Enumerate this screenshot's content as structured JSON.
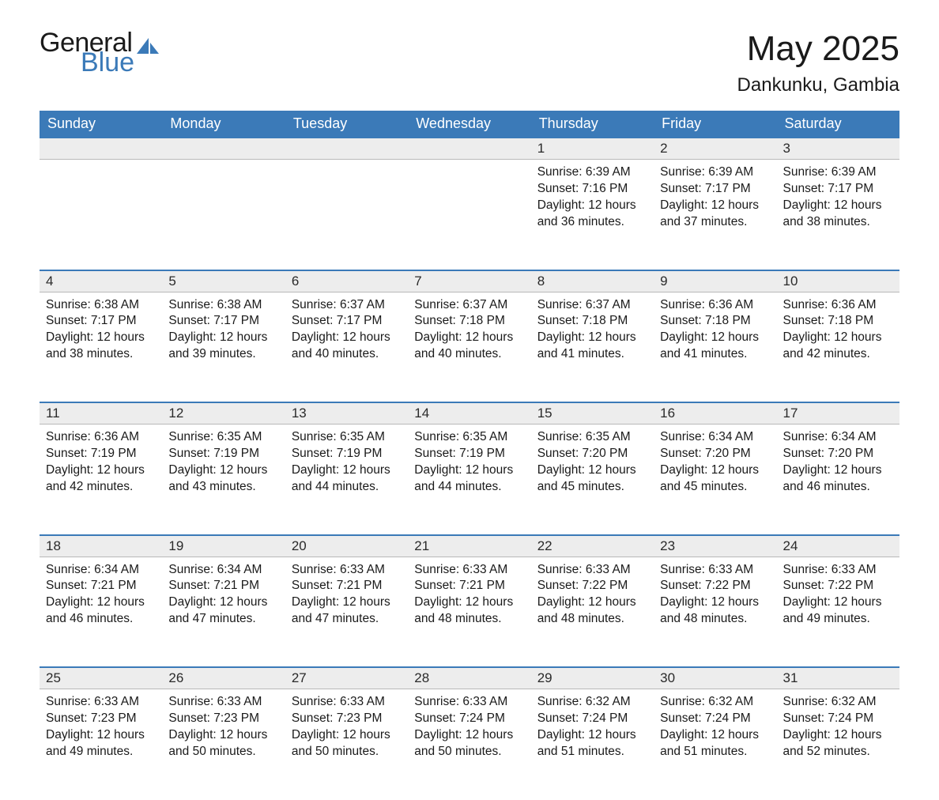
{
  "logo": {
    "word1": "General",
    "word2": "Blue",
    "icon_color": "#3b7ab8"
  },
  "title": "May 2025",
  "location": "Dankunku, Gambia",
  "colors": {
    "header_bg": "#3b7ab8",
    "header_fg": "#ffffff",
    "daynum_bg": "#ededed",
    "daynum_border_top": "#3b7ab8",
    "daynum_border_bottom": "#b8b8b8",
    "text": "#1a1a1a",
    "logo_blue": "#3b7ab8"
  },
  "day_headers": [
    "Sunday",
    "Monday",
    "Tuesday",
    "Wednesday",
    "Thursday",
    "Friday",
    "Saturday"
  ],
  "weeks": [
    [
      null,
      null,
      null,
      null,
      {
        "n": "1",
        "sunrise": "Sunrise: 6:39 AM",
        "sunset": "Sunset: 7:16 PM",
        "daylight": "Daylight: 12 hours and 36 minutes."
      },
      {
        "n": "2",
        "sunrise": "Sunrise: 6:39 AM",
        "sunset": "Sunset: 7:17 PM",
        "daylight": "Daylight: 12 hours and 37 minutes."
      },
      {
        "n": "3",
        "sunrise": "Sunrise: 6:39 AM",
        "sunset": "Sunset: 7:17 PM",
        "daylight": "Daylight: 12 hours and 38 minutes."
      }
    ],
    [
      {
        "n": "4",
        "sunrise": "Sunrise: 6:38 AM",
        "sunset": "Sunset: 7:17 PM",
        "daylight": "Daylight: 12 hours and 38 minutes."
      },
      {
        "n": "5",
        "sunrise": "Sunrise: 6:38 AM",
        "sunset": "Sunset: 7:17 PM",
        "daylight": "Daylight: 12 hours and 39 minutes."
      },
      {
        "n": "6",
        "sunrise": "Sunrise: 6:37 AM",
        "sunset": "Sunset: 7:17 PM",
        "daylight": "Daylight: 12 hours and 40 minutes."
      },
      {
        "n": "7",
        "sunrise": "Sunrise: 6:37 AM",
        "sunset": "Sunset: 7:18 PM",
        "daylight": "Daylight: 12 hours and 40 minutes."
      },
      {
        "n": "8",
        "sunrise": "Sunrise: 6:37 AM",
        "sunset": "Sunset: 7:18 PM",
        "daylight": "Daylight: 12 hours and 41 minutes."
      },
      {
        "n": "9",
        "sunrise": "Sunrise: 6:36 AM",
        "sunset": "Sunset: 7:18 PM",
        "daylight": "Daylight: 12 hours and 41 minutes."
      },
      {
        "n": "10",
        "sunrise": "Sunrise: 6:36 AM",
        "sunset": "Sunset: 7:18 PM",
        "daylight": "Daylight: 12 hours and 42 minutes."
      }
    ],
    [
      {
        "n": "11",
        "sunrise": "Sunrise: 6:36 AM",
        "sunset": "Sunset: 7:19 PM",
        "daylight": "Daylight: 12 hours and 42 minutes."
      },
      {
        "n": "12",
        "sunrise": "Sunrise: 6:35 AM",
        "sunset": "Sunset: 7:19 PM",
        "daylight": "Daylight: 12 hours and 43 minutes."
      },
      {
        "n": "13",
        "sunrise": "Sunrise: 6:35 AM",
        "sunset": "Sunset: 7:19 PM",
        "daylight": "Daylight: 12 hours and 44 minutes."
      },
      {
        "n": "14",
        "sunrise": "Sunrise: 6:35 AM",
        "sunset": "Sunset: 7:19 PM",
        "daylight": "Daylight: 12 hours and 44 minutes."
      },
      {
        "n": "15",
        "sunrise": "Sunrise: 6:35 AM",
        "sunset": "Sunset: 7:20 PM",
        "daylight": "Daylight: 12 hours and 45 minutes."
      },
      {
        "n": "16",
        "sunrise": "Sunrise: 6:34 AM",
        "sunset": "Sunset: 7:20 PM",
        "daylight": "Daylight: 12 hours and 45 minutes."
      },
      {
        "n": "17",
        "sunrise": "Sunrise: 6:34 AM",
        "sunset": "Sunset: 7:20 PM",
        "daylight": "Daylight: 12 hours and 46 minutes."
      }
    ],
    [
      {
        "n": "18",
        "sunrise": "Sunrise: 6:34 AM",
        "sunset": "Sunset: 7:21 PM",
        "daylight": "Daylight: 12 hours and 46 minutes."
      },
      {
        "n": "19",
        "sunrise": "Sunrise: 6:34 AM",
        "sunset": "Sunset: 7:21 PM",
        "daylight": "Daylight: 12 hours and 47 minutes."
      },
      {
        "n": "20",
        "sunrise": "Sunrise: 6:33 AM",
        "sunset": "Sunset: 7:21 PM",
        "daylight": "Daylight: 12 hours and 47 minutes."
      },
      {
        "n": "21",
        "sunrise": "Sunrise: 6:33 AM",
        "sunset": "Sunset: 7:21 PM",
        "daylight": "Daylight: 12 hours and 48 minutes."
      },
      {
        "n": "22",
        "sunrise": "Sunrise: 6:33 AM",
        "sunset": "Sunset: 7:22 PM",
        "daylight": "Daylight: 12 hours and 48 minutes."
      },
      {
        "n": "23",
        "sunrise": "Sunrise: 6:33 AM",
        "sunset": "Sunset: 7:22 PM",
        "daylight": "Daylight: 12 hours and 48 minutes."
      },
      {
        "n": "24",
        "sunrise": "Sunrise: 6:33 AM",
        "sunset": "Sunset: 7:22 PM",
        "daylight": "Daylight: 12 hours and 49 minutes."
      }
    ],
    [
      {
        "n": "25",
        "sunrise": "Sunrise: 6:33 AM",
        "sunset": "Sunset: 7:23 PM",
        "daylight": "Daylight: 12 hours and 49 minutes."
      },
      {
        "n": "26",
        "sunrise": "Sunrise: 6:33 AM",
        "sunset": "Sunset: 7:23 PM",
        "daylight": "Daylight: 12 hours and 50 minutes."
      },
      {
        "n": "27",
        "sunrise": "Sunrise: 6:33 AM",
        "sunset": "Sunset: 7:23 PM",
        "daylight": "Daylight: 12 hours and 50 minutes."
      },
      {
        "n": "28",
        "sunrise": "Sunrise: 6:33 AM",
        "sunset": "Sunset: 7:24 PM",
        "daylight": "Daylight: 12 hours and 50 minutes."
      },
      {
        "n": "29",
        "sunrise": "Sunrise: 6:32 AM",
        "sunset": "Sunset: 7:24 PM",
        "daylight": "Daylight: 12 hours and 51 minutes."
      },
      {
        "n": "30",
        "sunrise": "Sunrise: 6:32 AM",
        "sunset": "Sunset: 7:24 PM",
        "daylight": "Daylight: 12 hours and 51 minutes."
      },
      {
        "n": "31",
        "sunrise": "Sunrise: 6:32 AM",
        "sunset": "Sunset: 7:24 PM",
        "daylight": "Daylight: 12 hours and 52 minutes."
      }
    ]
  ]
}
